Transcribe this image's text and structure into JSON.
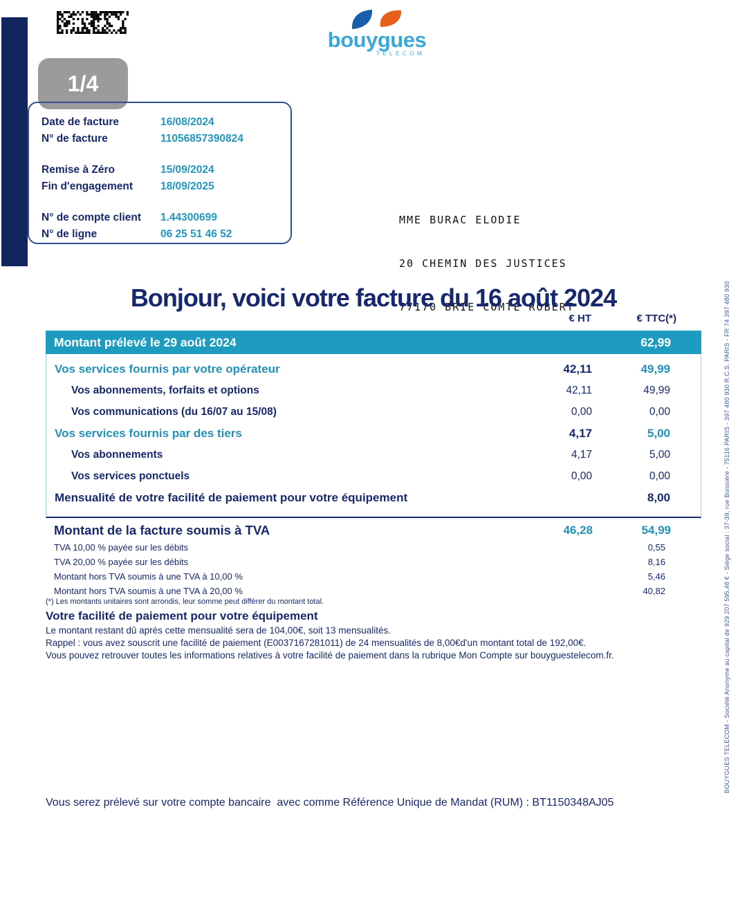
{
  "page": {
    "indicator": "1/4"
  },
  "logo": {
    "brand": "bouygues",
    "sub": "TELECOM"
  },
  "info_box": {
    "rows": [
      {
        "label": "Date de facture",
        "value": "16/08/2024"
      },
      {
        "label": "N° de facture",
        "value": "11056857390824"
      },
      {
        "label": "Remise à Zéro",
        "value": "15/09/2024"
      },
      {
        "label": "Fin d'engagement",
        "value": "18/09/2025"
      },
      {
        "label": "N° de compte client",
        "value": "1.44300699"
      },
      {
        "label": "N° de ligne",
        "value": "06 25 51 46 52"
      }
    ]
  },
  "recipient": {
    "lines": [
      "MME BURAC ELODIE",
      "20 CHEMIN DES JUSTICES",
      "77170 BRIE COMTE ROBERT"
    ]
  },
  "title": "Bonjour, voici votre facture du 16 août 2024",
  "invoice_table": {
    "col_ht": "€ HT",
    "col_ttc": "€ TTC(*)",
    "total_row": {
      "label": "Montant prélevé le 29 août 2024",
      "ttc": "62,99"
    },
    "rows": [
      {
        "label": "Vos services fournis par votre opérateur",
        "ht": "42,11",
        "ttc": "49,99"
      },
      {
        "label": "Vos abonnements, forfaits et options",
        "ht": "42,11",
        "ttc": "49,99"
      },
      {
        "label": "Vos communications  (du 16/07 au 15/08)",
        "ht": "0,00",
        "ttc": "0,00"
      },
      {
        "label": "Vos services fournis par des tiers",
        "ht": "4,17",
        "ttc": "5,00"
      },
      {
        "label": "Vos abonnements",
        "ht": "4,17",
        "ttc": "5,00"
      },
      {
        "label": "Vos services ponctuels",
        "ht": "0,00",
        "ttc": "0,00"
      },
      {
        "label": "Mensualité de votre facilité de paiement pour votre équipement",
        "ht": "",
        "ttc": "8,00"
      }
    ],
    "tva_summary": {
      "label": "Montant de la facture soumis à TVA",
      "ht": "46,28",
      "ttc": "54,99"
    },
    "tva_details": [
      {
        "label": "TVA 10,00 % payée sur les débits",
        "value": "0,55"
      },
      {
        "label": "TVA 20,00 % payée sur les débits",
        "value": "8,16"
      },
      {
        "label": "Montant hors TVA soumis à une TVA à 10,00 %",
        "value": "5,46"
      },
      {
        "label": "Montant hors TVA soumis à une TVA à 20,00 %",
        "value": "40,82"
      }
    ],
    "footnote": "(*) Les montants unitaires sont arrondis, leur somme peut différer du montant total."
  },
  "facility": {
    "heading": "Votre facilité de paiement pour votre équipement",
    "lines": [
      "Le montant restant dû après cette mensualité sera de 104,00€, soit 13  mensualités.",
      "Rappel : vous avez souscrit une facilité de paiement (E0037167281011) de 24 mensualités de 8,00€d'un montant total de 192,00€.",
      "Vous pouvez retrouver toutes les informations relatives à votre facilité de paiement dans la rubrique Mon Compte sur bouyguestelecom.fr."
    ]
  },
  "mandate_line": "Vous serez prélevé sur votre compte bancaire  avec comme Référence Unique de Mandat (RUM) : BT1150348AJ05",
  "legal_vertical": "BOUYGUES TELECOM - Société Anonyme au capital de 929 207 595,48 € - Siège social : 37-39, rue Boissière - 75116 PARIS - 397 480 930 R.C.S. PARIS - FR 74 397 480 930",
  "colors": {
    "navy": "#17286d",
    "teal_bar": "#1e9cbf",
    "teal_text": "#2191b8",
    "value_teal": "#2196be",
    "light_border": "#aacfe0",
    "badge_gray": "#9b9b9b",
    "logo_blue": "#3aa7da",
    "petal_blue": "#1660ab",
    "petal_orange": "#e8611c"
  }
}
